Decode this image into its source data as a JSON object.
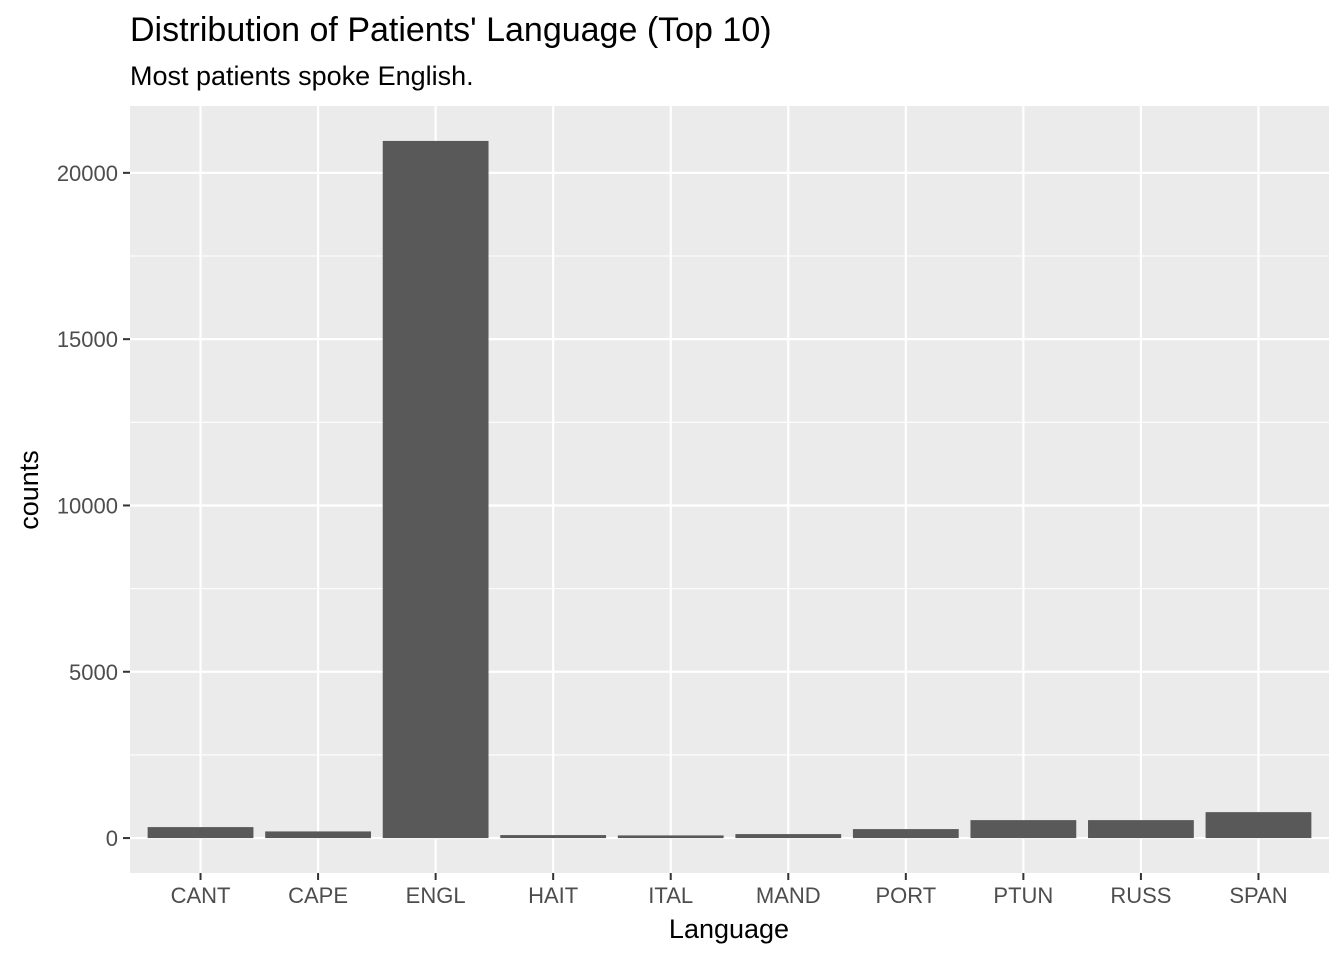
{
  "chart_data": {
    "type": "bar",
    "title": "Distribution of Patients' Language (Top 10)",
    "subtitle": "Most patients spoke English.",
    "xlabel": "Language",
    "ylabel": "counts",
    "categories": [
      "CANT",
      "CAPE",
      "ENGL",
      "HAIT",
      "ITAL",
      "MAND",
      "PORT",
      "PTUN",
      "RUSS",
      "SPAN"
    ],
    "values": [
      330,
      200,
      20960,
      90,
      80,
      120,
      270,
      540,
      540,
      780
    ],
    "ylim": [
      -1050,
      22010
    ],
    "yticks": [
      0,
      5000,
      10000,
      15000,
      20000
    ],
    "grid": true,
    "colors": {
      "bar": "#595959",
      "panel": "#ebebeb",
      "grid_major": "#ffffff",
      "grid_minor": "#f5f5f5",
      "tick": "#333333"
    }
  }
}
